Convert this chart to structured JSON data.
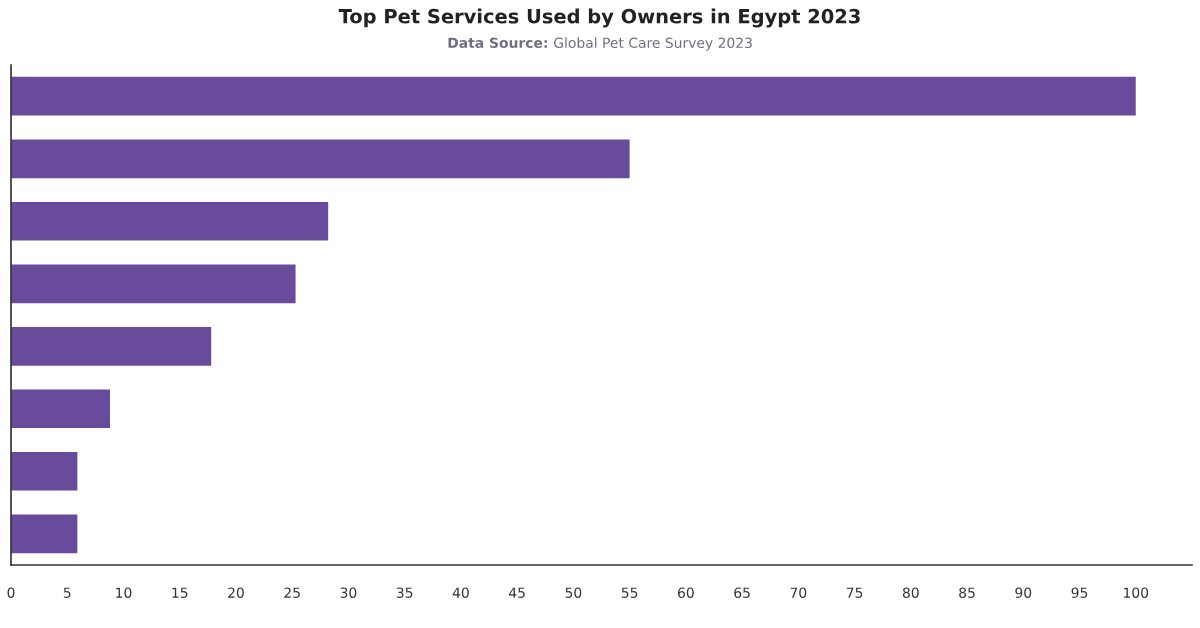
{
  "chart_data": {
    "type": "bar",
    "orientation": "horizontal",
    "title": "Top Pet Services Used by Owners in Egypt 2023",
    "subtitle": "Data Source: Global Pet Care Survey 2023",
    "categories": [
      null,
      null,
      null,
      null,
      null,
      null,
      null,
      null
    ],
    "values": [
      100,
      55,
      28.2,
      25.3,
      17.8,
      8.8,
      5.9,
      5.9
    ],
    "color": "#684b9b",
    "xlim": [
      0,
      105
    ],
    "xticks": [
      0,
      5,
      10,
      15,
      20,
      25,
      30,
      35,
      40,
      45,
      50,
      55,
      60,
      65,
      70,
      75,
      80,
      85,
      90,
      95,
      100
    ]
  }
}
